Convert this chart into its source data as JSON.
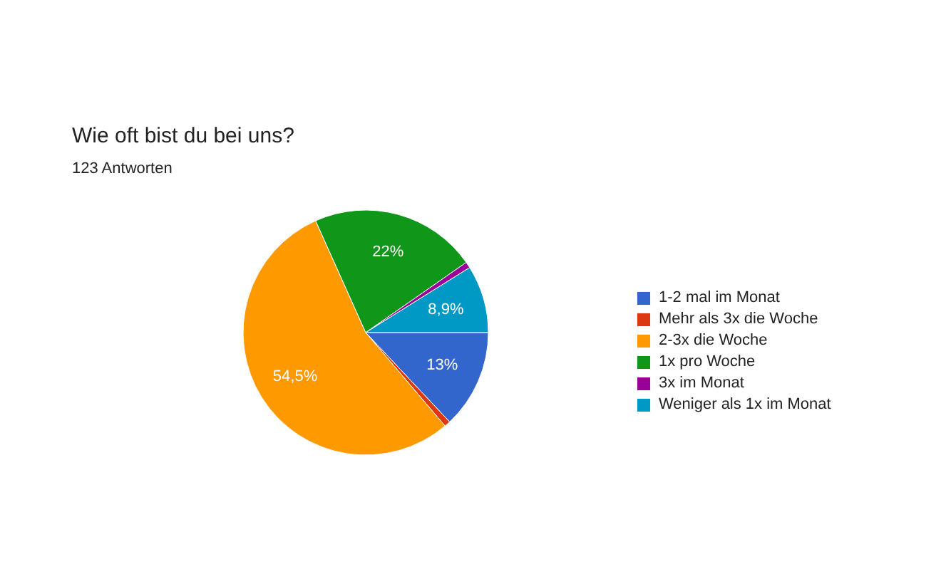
{
  "chart_data": {
    "type": "pie",
    "title": "Wie oft bist du bei uns?",
    "subtitle": "123 Antworten",
    "categories": [
      "1-2 mal im Monat",
      "Mehr als 3x die Woche",
      "2-3x die Woche",
      "1x pro Woche",
      "3x im Monat",
      "Weniger als 1x im Monat"
    ],
    "values": [
      13,
      0.8,
      54.5,
      22,
      0.8,
      8.9
    ],
    "colors": [
      "#3366cc",
      "#dc3912",
      "#ff9900",
      "#109618",
      "#990099",
      "#0099c6"
    ],
    "value_labels": [
      "13%",
      null,
      "54,5%",
      "22%",
      null,
      "8,9%"
    ],
    "legend": "right"
  }
}
